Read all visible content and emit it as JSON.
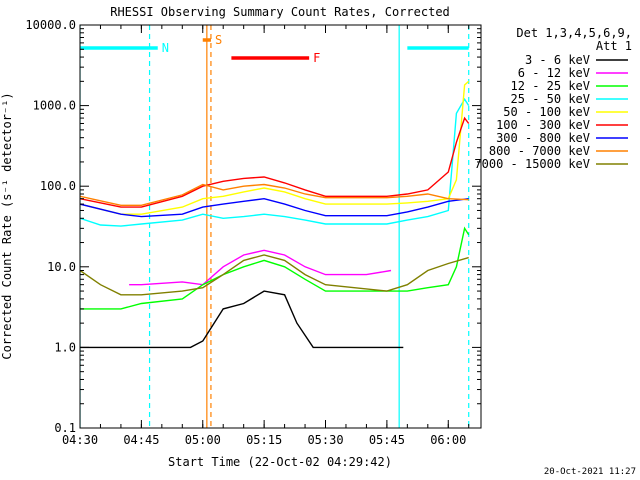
{
  "chart_data": {
    "type": "line",
    "title": "RHESSI Observing Summary Count Rates, Corrected",
    "xlabel": "Start Time (22-Oct-02 04:29:42)",
    "ylabel": "Corrected Count Rate (s⁻¹ detector⁻¹)",
    "y_scale": "log",
    "ylim": [
      0.1,
      10000.0
    ],
    "xlim": [
      "04:30",
      "06:08"
    ],
    "x_ticks": [
      "04:30",
      "04:45",
      "05:00",
      "05:15",
      "05:30",
      "05:45",
      "06:00"
    ],
    "y_ticks": [
      "0.1",
      "1.0",
      "10.0",
      "100.0",
      "1000.0",
      "10000.0"
    ],
    "grid": false,
    "legend_position": "top-right",
    "legend_header": [
      "Det 1,3,4,5,6,9,",
      "Att 1"
    ],
    "series": [
      {
        "name": "3 - 6 keV",
        "color": "#000000",
        "points": [
          [
            "04:30",
            1.0
          ],
          [
            "04:42",
            1.0
          ],
          [
            "04:45",
            1.0
          ],
          [
            "04:57",
            1.0
          ],
          [
            "05:00",
            1.2
          ],
          [
            "05:05",
            3.0
          ],
          [
            "05:10",
            3.5
          ],
          [
            "05:15",
            5.0
          ],
          [
            "05:20",
            4.5
          ],
          [
            "05:23",
            2.0
          ],
          [
            "05:27",
            1.0
          ],
          [
            "05:45",
            1.0
          ],
          [
            "05:49",
            1.0
          ]
        ]
      },
      {
        "name": "6 - 12 keV",
        "color": "#ff00ff",
        "points": [
          [
            "04:42",
            6.0
          ],
          [
            "04:45",
            6.0
          ],
          [
            "04:55",
            6.5
          ],
          [
            "05:00",
            6.0
          ],
          [
            "05:05",
            10.0
          ],
          [
            "05:10",
            14.0
          ],
          [
            "05:15",
            16.0
          ],
          [
            "05:20",
            14.0
          ],
          [
            "05:25",
            10.0
          ],
          [
            "05:30",
            8.0
          ],
          [
            "05:40",
            8.0
          ],
          [
            "05:46",
            9.0
          ]
        ]
      },
      {
        "name": "12 - 25 keV",
        "color": "#00ff00",
        "points": [
          [
            "04:30",
            3.0
          ],
          [
            "04:40",
            3.0
          ],
          [
            "04:45",
            3.5
          ],
          [
            "04:55",
            4.0
          ],
          [
            "05:00",
            6.0
          ],
          [
            "05:05",
            8.0
          ],
          [
            "05:10",
            10.0
          ],
          [
            "05:15",
            12.0
          ],
          [
            "05:20",
            10.0
          ],
          [
            "05:25",
            7.0
          ],
          [
            "05:30",
            5.0
          ],
          [
            "05:45",
            5.0
          ],
          [
            "05:50",
            5.0
          ],
          [
            "05:55",
            5.5
          ],
          [
            "06:00",
            6.0
          ],
          [
            "06:02",
            10.0
          ],
          [
            "06:04",
            30.0
          ],
          [
            "06:05",
            25.0
          ]
        ]
      },
      {
        "name": "25 - 50 keV",
        "color": "#00ffff",
        "points": [
          [
            "04:30",
            40.0
          ],
          [
            "04:35",
            33.0
          ],
          [
            "04:40",
            32.0
          ],
          [
            "04:45",
            34.0
          ],
          [
            "04:55",
            38.0
          ],
          [
            "05:00",
            45.0
          ],
          [
            "05:05",
            40.0
          ],
          [
            "05:10",
            42.0
          ],
          [
            "05:15",
            45.0
          ],
          [
            "05:20",
            42.0
          ],
          [
            "05:25",
            38.0
          ],
          [
            "05:30",
            34.0
          ],
          [
            "05:45",
            34.0
          ],
          [
            "05:50",
            38.0
          ],
          [
            "05:55",
            42.0
          ],
          [
            "06:00",
            50.0
          ],
          [
            "06:01",
            200.0
          ],
          [
            "06:02",
            800.0
          ],
          [
            "06:04",
            1200.0
          ],
          [
            "06:05",
            1000.0
          ]
        ]
      },
      {
        "name": "50 - 100 keV",
        "color": "#ffff00",
        "points": [
          [
            "04:30",
            60.0
          ],
          [
            "04:40",
            45.0
          ],
          [
            "04:45",
            45.0
          ],
          [
            "04:55",
            55.0
          ],
          [
            "05:00",
            70.0
          ],
          [
            "05:05",
            75.0
          ],
          [
            "05:10",
            85.0
          ],
          [
            "05:15",
            95.0
          ],
          [
            "05:20",
            85.0
          ],
          [
            "05:25",
            70.0
          ],
          [
            "05:30",
            60.0
          ],
          [
            "05:45",
            60.0
          ],
          [
            "05:50",
            62.0
          ],
          [
            "05:55",
            65.0
          ],
          [
            "06:00",
            70.0
          ],
          [
            "06:02",
            120.0
          ],
          [
            "06:04",
            1800.0
          ],
          [
            "06:05",
            2000.0
          ]
        ]
      },
      {
        "name": "100 - 300 keV",
        "color": "#ff0000",
        "points": [
          [
            "04:30",
            70.0
          ],
          [
            "04:40",
            55.0
          ],
          [
            "04:45",
            55.0
          ],
          [
            "04:55",
            75.0
          ],
          [
            "05:00",
            100.0
          ],
          [
            "05:05",
            115.0
          ],
          [
            "05:10",
            125.0
          ],
          [
            "05:15",
            130.0
          ],
          [
            "05:20",
            110.0
          ],
          [
            "05:25",
            90.0
          ],
          [
            "05:30",
            75.0
          ],
          [
            "05:45",
            75.0
          ],
          [
            "05:50",
            80.0
          ],
          [
            "05:55",
            90.0
          ],
          [
            "06:00",
            150.0
          ],
          [
            "06:02",
            350.0
          ],
          [
            "06:04",
            700.0
          ],
          [
            "06:05",
            600.0
          ]
        ]
      },
      {
        "name": "300 - 800 keV",
        "color": "#0000ff",
        "points": [
          [
            "04:30",
            60.0
          ],
          [
            "04:40",
            45.0
          ],
          [
            "04:45",
            42.0
          ],
          [
            "04:55",
            45.0
          ],
          [
            "05:00",
            55.0
          ],
          [
            "05:05",
            60.0
          ],
          [
            "05:10",
            65.0
          ],
          [
            "05:15",
            70.0
          ],
          [
            "05:20",
            60.0
          ],
          [
            "05:25",
            50.0
          ],
          [
            "05:30",
            43.0
          ],
          [
            "05:45",
            43.0
          ],
          [
            "05:50",
            48.0
          ],
          [
            "05:55",
            55.0
          ],
          [
            "06:00",
            65.0
          ],
          [
            "06:05",
            70.0
          ]
        ]
      },
      {
        "name": "800 - 7000 keV",
        "color": "#ff8000",
        "points": [
          [
            "04:30",
            75.0
          ],
          [
            "04:40",
            58.0
          ],
          [
            "04:45",
            58.0
          ],
          [
            "04:55",
            78.0
          ],
          [
            "05:00",
            105.0
          ],
          [
            "05:05",
            90.0
          ],
          [
            "05:10",
            100.0
          ],
          [
            "05:15",
            105.0
          ],
          [
            "05:20",
            95.0
          ],
          [
            "05:25",
            80.0
          ],
          [
            "05:30",
            72.0
          ],
          [
            "05:45",
            72.0
          ],
          [
            "05:50",
            75.0
          ],
          [
            "05:55",
            80.0
          ],
          [
            "06:00",
            70.0
          ],
          [
            "06:05",
            68.0
          ]
        ]
      },
      {
        "name": "7000 - 15000 keV",
        "color": "#808000",
        "points": [
          [
            "04:30",
            9.0
          ],
          [
            "04:35",
            6.0
          ],
          [
            "04:40",
            4.5
          ],
          [
            "04:45",
            4.5
          ],
          [
            "04:55",
            5.0
          ],
          [
            "05:00",
            5.5
          ],
          [
            "05:05",
            8.0
          ],
          [
            "05:10",
            12.0
          ],
          [
            "05:15",
            14.0
          ],
          [
            "05:20",
            12.0
          ],
          [
            "05:25",
            8.0
          ],
          [
            "05:30",
            6.0
          ],
          [
            "05:45",
            5.0
          ],
          [
            "05:50",
            6.0
          ],
          [
            "05:55",
            9.0
          ],
          [
            "06:00",
            11.0
          ],
          [
            "06:05",
            13.0
          ]
        ]
      }
    ],
    "annotations": [
      {
        "label": "N",
        "color": "#00ffff",
        "kind": "flag bar",
        "ranges": [
          [
            "04:30",
            "04:49"
          ],
          [
            "05:50",
            "06:05"
          ]
        ]
      },
      {
        "label": "S",
        "color": "#ff8000",
        "kind": "flag bar",
        "ranges": [
          [
            "05:00",
            "05:02"
          ]
        ]
      },
      {
        "label": "F",
        "color": "#ff0000",
        "kind": "flag bar",
        "ranges": [
          [
            "05:07",
            "05:26"
          ]
        ]
      }
    ],
    "vertical_lines": [
      {
        "time": "04:30",
        "color": "#00ffff",
        "style": "solid"
      },
      {
        "time": "04:47",
        "color": "#00ffff",
        "style": "dashed"
      },
      {
        "time": "05:01",
        "color": "#ff8000",
        "style": "solid"
      },
      {
        "time": "05:02",
        "color": "#ff8000",
        "style": "dashed"
      },
      {
        "time": "05:48",
        "color": "#00ffff",
        "style": "solid"
      },
      {
        "time": "06:05",
        "color": "#00ffff",
        "style": "dashed"
      }
    ]
  },
  "footer": {
    "timestamp": "20-Oct-2021 11:27"
  }
}
